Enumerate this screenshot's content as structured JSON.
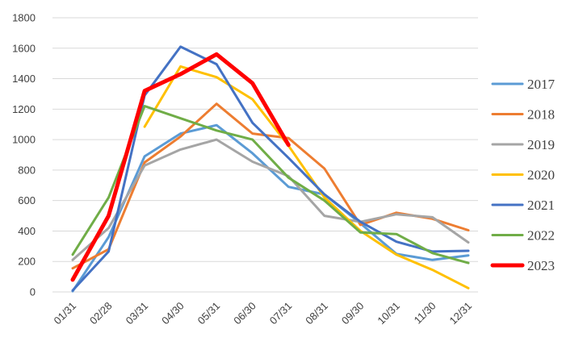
{
  "chart_data": {
    "type": "line",
    "title": "",
    "xlabel": "",
    "ylabel": "",
    "categories": [
      "01/31",
      "02/28",
      "03/31",
      "04/30",
      "05/31",
      "06/30",
      "07/31",
      "08/31",
      "09/30",
      "10/31",
      "11/30",
      "12/31"
    ],
    "ylim": [
      0,
      1800
    ],
    "yticks": [
      0,
      200,
      400,
      600,
      800,
      1000,
      1200,
      1400,
      1600,
      1800
    ],
    "grid": "horizontal",
    "legend": "right",
    "series": [
      {
        "name": "2017",
        "color": "#5B9BD5",
        "width": 3,
        "values": [
          5,
          360,
          890,
          1040,
          1095,
          910,
          690,
          640,
          450,
          250,
          210,
          240
        ]
      },
      {
        "name": "2018",
        "color": "#ED7D31",
        "width": 3,
        "values": [
          155,
          280,
          850,
          1020,
          1235,
          1040,
          1010,
          810,
          440,
          520,
          480,
          405
        ]
      },
      {
        "name": "2019",
        "color": "#A5A5A5",
        "width": 3,
        "values": [
          210,
          420,
          830,
          935,
          1000,
          855,
          760,
          500,
          460,
          510,
          490,
          325
        ]
      },
      {
        "name": "2020",
        "color": "#FFC000",
        "width": 3,
        "values": [
          null,
          null,
          1085,
          1480,
          1410,
          1265,
          960,
          620,
          400,
          245,
          145,
          25
        ]
      },
      {
        "name": "2021",
        "color": "#4472C4",
        "width": 3,
        "values": [
          10,
          265,
          1290,
          1610,
          1495,
          1110,
          880,
          640,
          460,
          330,
          265,
          270
        ]
      },
      {
        "name": "2022",
        "color": "#70AD47",
        "width": 3,
        "values": [
          245,
          620,
          1220,
          1140,
          1060,
          1000,
          750,
          600,
          390,
          380,
          255,
          190
        ]
      },
      {
        "name": "2023",
        "color": "#FF0000",
        "width": 5,
        "values": [
          80,
          500,
          1320,
          1430,
          1560,
          1370,
          965,
          null,
          null,
          null,
          null,
          null
        ]
      }
    ]
  }
}
